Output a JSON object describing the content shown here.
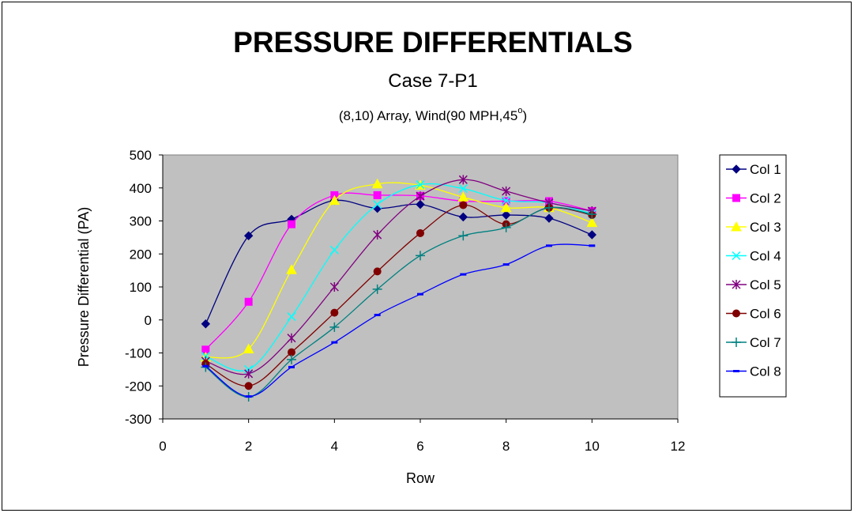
{
  "chart_data": {
    "type": "line",
    "title": "PRESSURE DIFFERENTIALS",
    "subtitle": "Case 7-P1",
    "subsubtitle_main": "(8,10) Array, Wind(90 MPH,45",
    "subsubtitle_sup": "o",
    "subsubtitle_end": ")",
    "xlabel": "Row",
    "ylabel": "Pressure Differential (PA)",
    "xlim": [
      0,
      12
    ],
    "ylim": [
      -300,
      500
    ],
    "xticks": [
      0,
      2,
      4,
      6,
      8,
      10,
      12
    ],
    "yticks": [
      -300,
      -200,
      -100,
      0,
      100,
      200,
      300,
      400,
      500
    ],
    "plot_background": "#c0c0c0",
    "legend_position": "right",
    "x": [
      1,
      2,
      3,
      4,
      5,
      6,
      7,
      8,
      9,
      10
    ],
    "series": [
      {
        "name": "Col 1",
        "color": "#000080",
        "marker": "diamond",
        "values": [
          -12,
          255,
          305,
          362,
          338,
          350,
          312,
          318,
          308,
          258
        ]
      },
      {
        "name": "Col 2",
        "color": "#ff00ff",
        "marker": "square",
        "values": [
          -90,
          55,
          290,
          378,
          378,
          376,
          360,
          360,
          360,
          330
        ]
      },
      {
        "name": "Col 3",
        "color": "#ffff00",
        "marker": "triangle",
        "values": [
          -113,
          -88,
          152,
          362,
          412,
          408,
          372,
          340,
          340,
          295
        ]
      },
      {
        "name": "Col 4",
        "color": "#00ffff",
        "marker": "x",
        "values": [
          -110,
          -150,
          10,
          212,
          350,
          410,
          398,
          362,
          355,
          322
        ]
      },
      {
        "name": "Col 5",
        "color": "#800080",
        "marker": "star",
        "values": [
          -125,
          -163,
          -55,
          100,
          258,
          375,
          425,
          390,
          355,
          330
        ]
      },
      {
        "name": "Col 6",
        "color": "#800000",
        "marker": "circle",
        "values": [
          -133,
          -200,
          -98,
          22,
          147,
          263,
          348,
          290,
          340,
          318
        ]
      },
      {
        "name": "Col 7",
        "color": "#008080",
        "marker": "plus",
        "values": [
          -143,
          -233,
          -120,
          -22,
          93,
          195,
          255,
          280,
          340,
          320
        ]
      },
      {
        "name": "Col 8",
        "color": "#0000ff",
        "marker": "dash",
        "values": [
          -140,
          -232,
          -143,
          -68,
          15,
          78,
          138,
          168,
          225,
          225
        ]
      }
    ]
  }
}
